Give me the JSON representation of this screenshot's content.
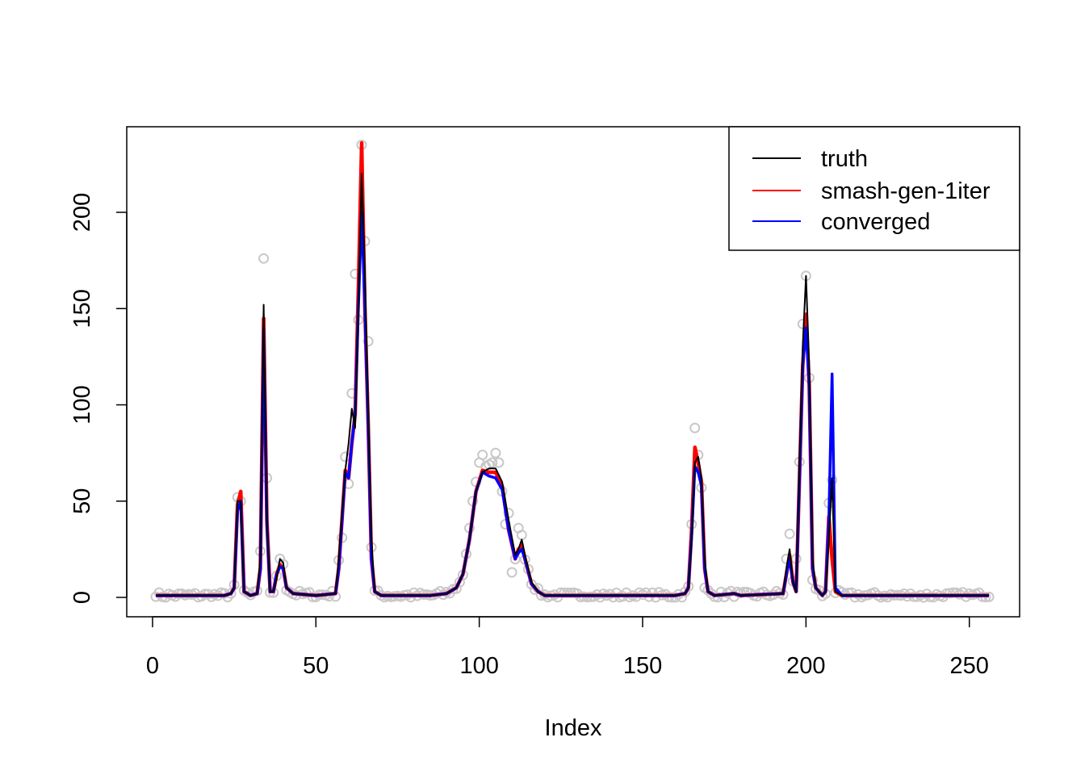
{
  "chart_data": {
    "type": "line",
    "xlabel": "Index",
    "ylabel": "",
    "title": "",
    "xlim": [
      1,
      256
    ],
    "ylim": [
      -9,
      244
    ],
    "x_ticks": [
      0,
      50,
      100,
      150,
      200,
      250
    ],
    "y_ticks": [
      0,
      50,
      100,
      150,
      200
    ],
    "legend": {
      "position": "top-right",
      "entries": [
        {
          "label": "truth",
          "color": "#000000"
        },
        {
          "label": "smash-gen-1iter",
          "color": "#ff0000"
        },
        {
          "label": "converged",
          "color": "#0000ff"
        }
      ]
    },
    "points_color": "#c8c8c8",
    "series": [
      {
        "name": "truth",
        "color": "#000000",
        "points": [
          [
            1,
            1
          ],
          [
            22,
            1
          ],
          [
            24,
            2
          ],
          [
            25,
            5
          ],
          [
            26,
            50
          ],
          [
            27,
            50
          ],
          [
            28,
            3
          ],
          [
            30,
            1
          ],
          [
            32,
            2
          ],
          [
            33,
            20
          ],
          [
            34,
            152
          ],
          [
            35,
            40
          ],
          [
            36,
            3
          ],
          [
            37,
            3
          ],
          [
            38,
            10
          ],
          [
            39,
            20
          ],
          [
            40,
            18
          ],
          [
            41,
            5
          ],
          [
            43,
            2
          ],
          [
            50,
            1
          ],
          [
            56,
            2
          ],
          [
            57,
            20
          ],
          [
            59,
            66
          ],
          [
            60,
            80
          ],
          [
            61,
            98
          ],
          [
            62,
            88
          ],
          [
            63,
            150
          ],
          [
            64,
            220
          ],
          [
            65,
            170
          ],
          [
            66,
            95
          ],
          [
            67,
            30
          ],
          [
            68,
            3
          ],
          [
            70,
            1
          ],
          [
            85,
            1
          ],
          [
            90,
            2
          ],
          [
            93,
            5
          ],
          [
            95,
            12
          ],
          [
            97,
            30
          ],
          [
            99,
            55
          ],
          [
            101,
            65
          ],
          [
            103,
            67
          ],
          [
            105,
            67
          ],
          [
            107,
            60
          ],
          [
            109,
            40
          ],
          [
            111,
            22
          ],
          [
            112,
            25
          ],
          [
            113,
            30
          ],
          [
            114,
            22
          ],
          [
            116,
            8
          ],
          [
            118,
            3
          ],
          [
            120,
            1
          ],
          [
            160,
            1
          ],
          [
            163,
            2
          ],
          [
            164,
            5
          ],
          [
            165,
            30
          ],
          [
            166,
            70
          ],
          [
            167,
            73
          ],
          [
            168,
            62
          ],
          [
            169,
            20
          ],
          [
            170,
            3
          ],
          [
            172,
            1
          ],
          [
            178,
            2
          ],
          [
            180,
            1
          ],
          [
            193,
            2
          ],
          [
            194,
            15
          ],
          [
            195,
            25
          ],
          [
            196,
            8
          ],
          [
            197,
            3
          ],
          [
            199,
            130
          ],
          [
            200,
            167
          ],
          [
            201,
            120
          ],
          [
            202,
            20
          ],
          [
            203,
            5
          ],
          [
            205,
            1
          ],
          [
            206,
            3
          ],
          [
            207,
            30
          ],
          [
            208,
            62
          ],
          [
            209,
            3
          ],
          [
            211,
            1
          ],
          [
            256,
            1
          ]
        ]
      },
      {
        "name": "smash-gen-1iter",
        "color": "#ff0000",
        "points": [
          [
            1,
            1
          ],
          [
            22,
            1
          ],
          [
            24,
            2
          ],
          [
            25,
            5
          ],
          [
            26,
            48
          ],
          [
            27,
            55
          ],
          [
            28,
            3
          ],
          [
            30,
            1
          ],
          [
            32,
            2
          ],
          [
            33,
            15
          ],
          [
            34,
            145
          ],
          [
            35,
            40
          ],
          [
            36,
            3
          ],
          [
            37,
            3
          ],
          [
            38,
            12
          ],
          [
            39,
            17
          ],
          [
            40,
            15
          ],
          [
            41,
            5
          ],
          [
            43,
            2
          ],
          [
            50,
            1
          ],
          [
            56,
            2
          ],
          [
            57,
            15
          ],
          [
            59,
            66
          ],
          [
            60,
            62
          ],
          [
            61,
            80
          ],
          [
            62,
            95
          ],
          [
            63,
            160
          ],
          [
            64,
            236
          ],
          [
            65,
            150
          ],
          [
            66,
            90
          ],
          [
            67,
            20
          ],
          [
            68,
            3
          ],
          [
            70,
            1
          ],
          [
            85,
            1
          ],
          [
            90,
            2
          ],
          [
            93,
            5
          ],
          [
            95,
            12
          ],
          [
            97,
            30
          ],
          [
            99,
            55
          ],
          [
            101,
            66
          ],
          [
            103,
            65
          ],
          [
            105,
            65
          ],
          [
            107,
            58
          ],
          [
            109,
            35
          ],
          [
            111,
            20
          ],
          [
            112,
            25
          ],
          [
            113,
            27
          ],
          [
            114,
            20
          ],
          [
            116,
            7
          ],
          [
            118,
            3
          ],
          [
            120,
            1
          ],
          [
            160,
            1
          ],
          [
            163,
            2
          ],
          [
            164,
            5
          ],
          [
            165,
            35
          ],
          [
            166,
            78
          ],
          [
            167,
            70
          ],
          [
            168,
            60
          ],
          [
            169,
            15
          ],
          [
            170,
            3
          ],
          [
            172,
            1
          ],
          [
            178,
            2
          ],
          [
            180,
            1
          ],
          [
            193,
            2
          ],
          [
            194,
            12
          ],
          [
            195,
            22
          ],
          [
            196,
            8
          ],
          [
            197,
            3
          ],
          [
            199,
            120
          ],
          [
            200,
            147
          ],
          [
            201,
            110
          ],
          [
            202,
            15
          ],
          [
            203,
            5
          ],
          [
            205,
            1
          ],
          [
            206,
            3
          ],
          [
            207,
            42
          ],
          [
            208,
            20
          ],
          [
            209,
            3
          ],
          [
            211,
            1
          ],
          [
            256,
            1
          ]
        ]
      },
      {
        "name": "converged",
        "color": "#0000ff",
        "points": [
          [
            1,
            1
          ],
          [
            22,
            1
          ],
          [
            24,
            2
          ],
          [
            25,
            5
          ],
          [
            26,
            45
          ],
          [
            27,
            50
          ],
          [
            28,
            3
          ],
          [
            30,
            1
          ],
          [
            32,
            2
          ],
          [
            33,
            15
          ],
          [
            34,
            140
          ],
          [
            35,
            38
          ],
          [
            36,
            3
          ],
          [
            37,
            3
          ],
          [
            38,
            12
          ],
          [
            39,
            16
          ],
          [
            40,
            15
          ],
          [
            41,
            5
          ],
          [
            43,
            2
          ],
          [
            50,
            1
          ],
          [
            56,
            2
          ],
          [
            57,
            15
          ],
          [
            59,
            65
          ],
          [
            60,
            62
          ],
          [
            61,
            80
          ],
          [
            62,
            95
          ],
          [
            63,
            150
          ],
          [
            64,
            200
          ],
          [
            65,
            150
          ],
          [
            66,
            90
          ],
          [
            67,
            20
          ],
          [
            68,
            3
          ],
          [
            70,
            1
          ],
          [
            85,
            1
          ],
          [
            90,
            2
          ],
          [
            93,
            5
          ],
          [
            95,
            12
          ],
          [
            97,
            30
          ],
          [
            99,
            55
          ],
          [
            101,
            65
          ],
          [
            103,
            63
          ],
          [
            105,
            62
          ],
          [
            107,
            56
          ],
          [
            109,
            35
          ],
          [
            111,
            20
          ],
          [
            112,
            23
          ],
          [
            113,
            25
          ],
          [
            114,
            20
          ],
          [
            116,
            7
          ],
          [
            118,
            3
          ],
          [
            120,
            1
          ],
          [
            160,
            1
          ],
          [
            163,
            2
          ],
          [
            164,
            5
          ],
          [
            165,
            32
          ],
          [
            166,
            68
          ],
          [
            167,
            65
          ],
          [
            168,
            58
          ],
          [
            169,
            15
          ],
          [
            170,
            3
          ],
          [
            172,
            1
          ],
          [
            178,
            2
          ],
          [
            180,
            1
          ],
          [
            193,
            2
          ],
          [
            194,
            12
          ],
          [
            195,
            20
          ],
          [
            196,
            8
          ],
          [
            197,
            3
          ],
          [
            199,
            120
          ],
          [
            200,
            140
          ],
          [
            201,
            110
          ],
          [
            202,
            15
          ],
          [
            203,
            5
          ],
          [
            205,
            1
          ],
          [
            206,
            3
          ],
          [
            207,
            40
          ],
          [
            208,
            116
          ],
          [
            209,
            5
          ],
          [
            211,
            1
          ],
          [
            256,
            1
          ]
        ]
      }
    ],
    "observations": {
      "name": "observed",
      "notable": [
        [
          26,
          52
        ],
        [
          27,
          50
        ],
        [
          33,
          24
        ],
        [
          34,
          176
        ],
        [
          35,
          62
        ],
        [
          39,
          20
        ],
        [
          58,
          31
        ],
        [
          59,
          73
        ],
        [
          60,
          59
        ],
        [
          61,
          106
        ],
        [
          62,
          168
        ],
        [
          64,
          235
        ],
        [
          65,
          185
        ],
        [
          66,
          133
        ],
        [
          67,
          26
        ],
        [
          97,
          36
        ],
        [
          98,
          50
        ],
        [
          99,
          60
        ],
        [
          100,
          70
        ],
        [
          101,
          74
        ],
        [
          102,
          68
        ],
        [
          103,
          69
        ],
        [
          104,
          70
        ],
        [
          105,
          75
        ],
        [
          106,
          70
        ],
        [
          107,
          55
        ],
        [
          108,
          38
        ],
        [
          110,
          13
        ],
        [
          112,
          36
        ],
        [
          165,
          38
        ],
        [
          166,
          88
        ],
        [
          167,
          74
        ],
        [
          168,
          57
        ],
        [
          169,
          5
        ],
        [
          194,
          20
        ],
        [
          195,
          33
        ],
        [
          197,
          20
        ],
        [
          199,
          142
        ],
        [
          200,
          167
        ],
        [
          201,
          114
        ],
        [
          202,
          9
        ],
        [
          207,
          49
        ],
        [
          208,
          61
        ]
      ]
    }
  }
}
